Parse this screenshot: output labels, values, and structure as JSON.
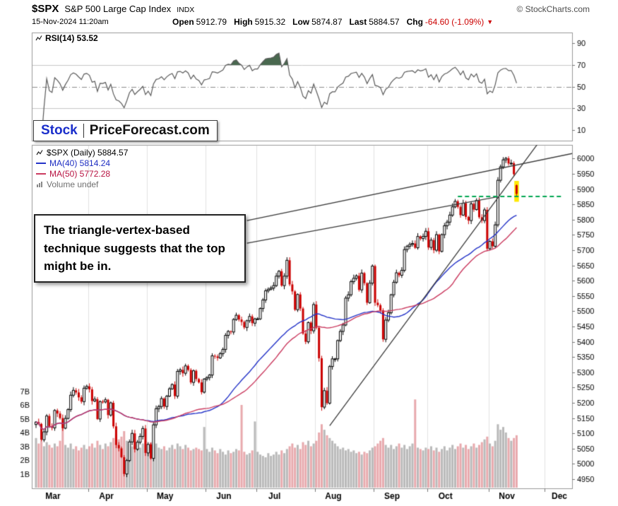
{
  "header": {
    "symbol": "$SPX",
    "name": "S&P 500 Large Cap Index",
    "exchange": "INDX",
    "copyright": "© StockCharts.com",
    "datetime": "15-Nov-2024 11:20am",
    "quote": {
      "open_label": "Open",
      "open": "5912.79",
      "high_label": "High",
      "high": "5915.32",
      "low_label": "Low",
      "low": "5874.87",
      "last_label": "Last",
      "last": "5884.57",
      "chg_label": "Chg",
      "chg": "-64.60 (-1.09%)",
      "chg_arrow": "▼"
    }
  },
  "logo": {
    "part1": "Stock",
    "part2": "PriceForecast.com"
  },
  "legend": {
    "rsi": "RSI(14) 53.52",
    "price": "$SPX (Daily) 5884.57",
    "ma40": "MA(40) 5814.24",
    "ma50": "MA(50) 5772.28",
    "volume": "Volume undef"
  },
  "annotation": {
    "text": "The triangle-vertex-based technique suggests that the top might be in."
  },
  "colors": {
    "up_candle": "#000000",
    "down_candle": "#cc0000",
    "ma40": "#2433c8",
    "ma50": "#cb3b60",
    "rsi_line": "#5a5a5a",
    "rsi_fill": "#49684f",
    "green_dashed": "#00a651",
    "vol_up": "rgba(128,128,128,0.55)",
    "vol_down": "rgba(214,98,105,0.55)",
    "panel_border": "#999999",
    "grid": "#e2e2e2",
    "tick": "#777777",
    "highlight": "#ffe800",
    "chg_red": "#cc0000",
    "logo_blue": "#1a2ecb"
  },
  "chart_data": {
    "type": "candlestick",
    "timeframe": "daily",
    "title": "$SPX (Daily) 5884.57",
    "months": [
      {
        "label": "Mar",
        "start": 0
      },
      {
        "label": "Apr",
        "start": 20
      },
      {
        "label": "May",
        "start": 42
      },
      {
        "label": "Jun",
        "start": 64
      },
      {
        "label": "Jul",
        "start": 83
      },
      {
        "label": "Aug",
        "start": 105
      },
      {
        "label": "Sep",
        "start": 127
      },
      {
        "label": "Oct",
        "start": 147
      },
      {
        "label": "Nov",
        "start": 170
      },
      {
        "label": "Dec",
        "start": 191
      }
    ],
    "price_axis": {
      "min": 4950,
      "max": 6000,
      "step": 50,
      "ticks": [
        6000,
        5950,
        5900,
        5850,
        5800,
        5750,
        5700,
        5650,
        5600,
        5550,
        5500,
        5450,
        5400,
        5350,
        5300,
        5250,
        5200,
        5150,
        5100,
        5050,
        5000,
        4950
      ]
    },
    "rsi_axis": {
      "ticks": [
        90,
        70,
        50,
        30,
        10
      ],
      "guides": {
        "overbought": 70,
        "midline": 50,
        "oversold": 30
      }
    },
    "volume_axis": {
      "ticks": [
        "7B",
        "6B",
        "5B",
        "4B",
        "3B",
        "2B",
        "1B"
      ]
    },
    "indicators": {
      "rsi_period": 14,
      "rsi_value": 53.52,
      "ma40_value": 5814.24,
      "ma50_value": 5772.28,
      "volume_value": "undef"
    },
    "closes": [
      5137,
      5131,
      5079,
      5105,
      5157,
      5124,
      5118,
      5175,
      5165,
      5150,
      5117,
      5149,
      5178,
      5225,
      5241,
      5234,
      5218,
      5204,
      5248,
      5254,
      5244,
      5206,
      5212,
      5147,
      5204,
      5203,
      5210,
      5160,
      5200,
      5123,
      5062,
      5051,
      5022,
      4967,
      5011,
      5072,
      5100,
      5048,
      5071,
      5090,
      5116,
      5036,
      5064,
      5018,
      5128,
      5181,
      5188,
      5214,
      5188,
      5222,
      5246,
      5260,
      5222,
      5303,
      5308,
      5297,
      5321,
      5308,
      5267,
      5305,
      5278,
      5267,
      5235,
      5278,
      5283,
      5291,
      5354,
      5352,
      5347,
      5361,
      5375,
      5421,
      5434,
      5432,
      5473,
      5487,
      5473,
      5465,
      5447,
      5469,
      5483,
      5461,
      5475,
      5475,
      5509,
      5537,
      5567,
      5572,
      5576,
      5584,
      5615,
      5631,
      5584,
      5615,
      5667,
      5588,
      5565,
      5505,
      5555,
      5509,
      5427,
      5400,
      5463,
      5436,
      5522,
      5446,
      5346,
      5186,
      5240,
      5199,
      5319,
      5344,
      5344,
      5404,
      5434,
      5455,
      5543,
      5554,
      5597,
      5608,
      5616,
      5570,
      5625,
      5592,
      5528,
      5592,
      5648,
      5528,
      5520,
      5503,
      5408,
      5471,
      5495,
      5554,
      5595,
      5626,
      5618,
      5634,
      5702,
      5713,
      5719,
      5722,
      5708,
      5745,
      5738,
      5745,
      5762,
      5709,
      5733,
      5700,
      5751,
      5696,
      5751,
      5780,
      5792,
      5815,
      5842,
      5860,
      5842,
      5815,
      5854,
      5809,
      5797,
      5852,
      5833,
      5863,
      5808,
      5797,
      5832,
      5705,
      5729,
      5713,
      5783,
      5929,
      5973,
      5996,
      6001,
      5984,
      5985,
      5949,
      5884.57
    ],
    "volumes_b": [
      3.6,
      3.2,
      3.4,
      3.0,
      3.3,
      3.1,
      2.9,
      3.2,
      3.0,
      3.4,
      4.8,
      3.1,
      2.9,
      3.2,
      2.8,
      3.0,
      2.7,
      2.9,
      3.1,
      2.8,
      3.0,
      3.2,
      2.9,
      3.4,
      3.1,
      2.8,
      3.2,
      3.0,
      3.3,
      3.6,
      3.9,
      3.5,
      3.7,
      4.1,
      3.4,
      3.2,
      3.0,
      3.3,
      3.1,
      2.9,
      3.2,
      3.4,
      3.1,
      3.3,
      3.0,
      3.2,
      2.9,
      2.8,
      3.0,
      2.7,
      2.9,
      3.1,
      2.8,
      3.2,
      3.0,
      2.8,
      3.1,
      2.9,
      2.7,
      2.8,
      2.9,
      2.8,
      2.7,
      4.4,
      2.8,
      2.6,
      2.9,
      2.7,
      2.5,
      2.8,
      2.6,
      2.4,
      2.7,
      2.5,
      2.6,
      2.8,
      2.7,
      6.0,
      2.6,
      2.4,
      2.5,
      2.7,
      4.8,
      2.6,
      2.4,
      2.3,
      2.2,
      2.5,
      2.3,
      2.4,
      2.6,
      2.4,
      2.7,
      2.5,
      2.8,
      3.0,
      3.2,
      2.9,
      3.1,
      2.8,
      3.3,
      3.1,
      3.4,
      3.0,
      3.2,
      3.4,
      4.0,
      4.6,
      4.2,
      3.8,
      3.6,
      3.4,
      3.2,
      3.0,
      2.8,
      2.9,
      2.7,
      2.8,
      2.6,
      2.7,
      2.5,
      2.6,
      2.4,
      2.6,
      2.5,
      2.7,
      2.9,
      3.0,
      3.2,
      3.4,
      3.6,
      3.1,
      2.9,
      3.1,
      2.8,
      3.0,
      3.2,
      2.9,
      3.1,
      2.8,
      3.0,
      3.2,
      6.4,
      2.9,
      2.8,
      2.7,
      2.9,
      2.8,
      3.0,
      2.7,
      2.9,
      2.6,
      2.8,
      3.0,
      2.7,
      2.9,
      3.1,
      2.8,
      3.0,
      3.2,
      2.9,
      3.1,
      2.8,
      3.0,
      3.2,
      2.9,
      3.1,
      3.3,
      3.5,
      3.7,
      3.2,
      3.0,
      3.4,
      4.6,
      4.2,
      4.4,
      4.0,
      3.6,
      3.4,
      3.6,
      3.8
    ],
    "last_candle": {
      "open": 5912.79,
      "high": 5915.32,
      "low": 5874.87,
      "close": 5884.57
    },
    "annotations": {
      "trendlines": [
        {
          "name": "support-trendline",
          "i1": 110,
          "p1": 5125,
          "i2": 191,
          "p2": 6085
        },
        {
          "name": "upper-callout-line",
          "i1": 79,
          "p1": 5797,
          "i2": 201,
          "p2": 6017
        },
        {
          "name": "lower-callout-line",
          "i1": 79,
          "p1": 5723,
          "i2": 173,
          "p2": 5875
        }
      ],
      "vertex_line": {
        "price": 5876,
        "i1": 158,
        "i2": 197,
        "style": "dashed",
        "color": "green"
      },
      "highlight_index": 180
    }
  }
}
